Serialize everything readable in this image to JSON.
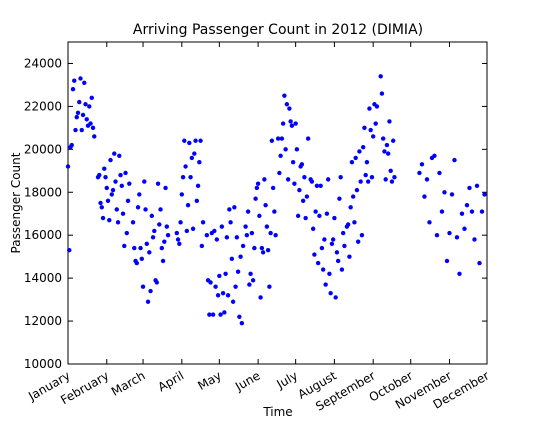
{
  "chart_data": {
    "type": "scatter",
    "title": "Arriving Passenger Count in 2012 (DIMIA)",
    "x_label": "Time",
    "y_label": "Passenger Count",
    "color": "#0000ff",
    "xlim": [
      1,
      336
    ],
    "xticks": [
      {
        "value": 1,
        "label": "January"
      },
      {
        "value": 32,
        "label": "February"
      },
      {
        "value": 61,
        "label": "March"
      },
      {
        "value": 92,
        "label": "April"
      },
      {
        "value": 122,
        "label": "May"
      },
      {
        "value": 153,
        "label": "June"
      },
      {
        "value": 183,
        "label": "July"
      },
      {
        "value": 214,
        "label": "August"
      },
      {
        "value": 245,
        "label": "September"
      },
      {
        "value": 275,
        "label": "October"
      },
      {
        "value": 306,
        "label": "November"
      },
      {
        "value": 336,
        "label": "December"
      }
    ],
    "ylim": [
      10000,
      25000
    ],
    "yticks": [
      10000,
      12000,
      14000,
      16000,
      18000,
      20000,
      22000,
      24000
    ],
    "x": [
      1,
      2,
      3,
      4,
      5,
      6,
      7,
      8,
      9,
      10,
      11,
      12,
      13,
      14,
      15,
      16,
      17,
      18,
      19,
      20,
      21,
      22,
      25,
      26,
      27,
      28,
      29,
      30,
      31,
      32,
      33,
      34,
      35,
      36,
      37,
      38,
      39,
      40,
      41,
      42,
      43,
      44,
      45,
      46,
      47,
      48,
      49,
      50,
      53,
      54,
      55,
      56,
      57,
      58,
      59,
      60,
      61,
      62,
      63,
      64,
      65,
      66,
      67,
      68,
      69,
      70,
      71,
      72,
      73,
      74,
      75,
      76,
      77,
      78,
      79,
      80,
      81,
      88,
      89,
      90,
      91,
      92,
      93,
      94,
      95,
      96,
      97,
      98,
      99,
      100,
      101,
      102,
      103,
      104,
      105,
      106,
      107,
      108,
      109,
      112,
      113,
      114,
      115,
      116,
      117,
      118,
      119,
      120,
      121,
      122,
      123,
      124,
      125,
      126,
      127,
      128,
      129,
      130,
      131,
      132,
      133,
      134,
      135,
      136,
      137,
      138,
      139,
      140,
      141,
      143,
      144,
      145,
      146,
      147,
      148,
      149,
      150,
      151,
      152,
      153,
      154,
      155,
      156,
      157,
      158,
      159,
      160,
      161,
      162,
      163,
      164,
      165,
      166,
      167,
      169,
      170,
      171,
      172,
      173,
      174,
      175,
      176,
      177,
      178,
      179,
      180,
      181,
      182,
      183,
      184,
      185,
      186,
      187,
      188,
      189,
      190,
      191,
      192,
      193,
      195,
      196,
      197,
      198,
      199,
      200,
      201,
      202,
      203,
      204,
      205,
      206,
      207,
      208,
      209,
      210,
      211,
      212,
      213,
      214,
      215,
      216,
      217,
      218,
      219,
      220,
      221,
      222,
      224,
      225,
      226,
      227,
      228,
      229,
      230,
      231,
      232,
      233,
      234,
      235,
      236,
      237,
      238,
      239,
      240,
      241,
      242,
      243,
      244,
      245,
      246,
      247,
      248,
      251,
      252,
      253,
      254,
      255,
      256,
      257,
      258,
      259,
      260,
      261,
      262,
      282,
      284,
      286,
      288,
      290,
      292,
      294,
      296,
      298,
      300,
      302,
      304,
      306,
      308,
      310,
      312,
      314,
      316,
      318,
      320,
      322,
      324,
      326,
      328,
      330,
      332,
      334
    ],
    "values": [
      19200,
      15300,
      20100,
      20200,
      22800,
      23200,
      20900,
      21500,
      21700,
      22200,
      23300,
      20900,
      21600,
      23100,
      22100,
      21400,
      21100,
      22000,
      21200,
      22400,
      21000,
      20600,
      18700,
      18800,
      17500,
      17300,
      16800,
      19100,
      18700,
      18200,
      17600,
      16700,
      19500,
      17900,
      18100,
      19800,
      18500,
      17200,
      16600,
      19700,
      18800,
      18300,
      17000,
      15500,
      18900,
      16100,
      17600,
      18400,
      16600,
      15400,
      14800,
      14700,
      17300,
      17900,
      15400,
      14900,
      13600,
      18500,
      17200,
      15600,
      12900,
      15200,
      13400,
      16900,
      15900,
      16200,
      13900,
      13800,
      18400,
      16500,
      17200,
      15400,
      14800,
      15700,
      18200,
      16400,
      16000,
      16100,
      15800,
      15600,
      16600,
      17900,
      18700,
      20400,
      19200,
      16200,
      17400,
      20300,
      18700,
      19600,
      16300,
      19800,
      20400,
      17600,
      18300,
      19400,
      20400,
      15500,
      16600,
      16000,
      13900,
      12300,
      13800,
      16100,
      12300,
      16200,
      13600,
      15800,
      13200,
      14100,
      12300,
      16400,
      13300,
      12400,
      14200,
      15900,
      13200,
      17200,
      16600,
      14900,
      12900,
      17300,
      13600,
      15900,
      14300,
      12200,
      15000,
      11900,
      15500,
      16400,
      16000,
      17100,
      13700,
      14200,
      16100,
      13900,
      15400,
      17700,
      18200,
      18400,
      16900,
      13100,
      15400,
      15200,
      18600,
      17400,
      16400,
      15300,
      13600,
      16100,
      20400,
      18200,
      17100,
      16000,
      20500,
      18900,
      19700,
      20500,
      21200,
      22500,
      20000,
      22100,
      18600,
      21900,
      21300,
      21100,
      19400,
      18400,
      21200,
      20000,
      16900,
      18100,
      19200,
      19300,
      17600,
      18700,
      16800,
      17800,
      20500,
      18600,
      18500,
      16300,
      15100,
      17100,
      18300,
      14700,
      16900,
      18300,
      15400,
      14400,
      15800,
      13700,
      17000,
      18600,
      14200,
      13300,
      15600,
      15800,
      16800,
      13100,
      15200,
      14800,
      17700,
      18700,
      14400,
      16100,
      15500,
      16400,
      16500,
      15000,
      17300,
      19400,
      17800,
      16600,
      19600,
      18100,
      15700,
      19900,
      18500,
      16000,
      20100,
      21000,
      18800,
      19400,
      18500,
      21900,
      20900,
      18700,
      20600,
      22100,
      21200,
      22000,
      23400,
      22600,
      20500,
      19900,
      18600,
      20200,
      19800,
      21300,
      19000,
      18500,
      20400,
      18700,
      18900,
      19300,
      17800,
      18600,
      16600,
      19600,
      19700,
      16000,
      18900,
      17100,
      18000,
      14800,
      16100,
      17900,
      19500,
      15900,
      14200,
      17000,
      16300,
      17400,
      18200,
      17100,
      15800,
      18300,
      14700,
      17100,
      17900
    ]
  }
}
